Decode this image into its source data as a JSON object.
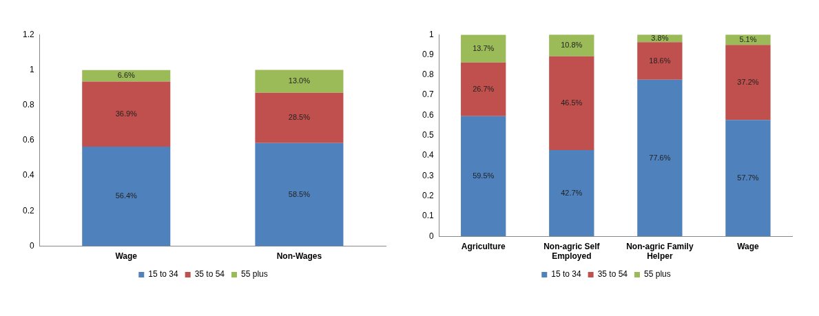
{
  "chart_data": [
    {
      "type": "bar",
      "stacked": true,
      "categories": [
        "Wage",
        "Non-Wages"
      ],
      "ylim": [
        0,
        1.2
      ],
      "yticks": [
        0,
        0.2,
        0.4,
        0.6,
        0.8,
        1,
        1.2
      ],
      "legend": "bottom",
      "grid": false,
      "series": [
        {
          "name": "15 to 34",
          "color": "#4f81bd",
          "values": [
            0.564,
            0.585
          ],
          "value_labels": [
            "56.4%",
            "58.5%"
          ]
        },
        {
          "name": "35 to 54",
          "color": "#c0504d",
          "values": [
            0.369,
            0.285
          ],
          "value_labels": [
            "36.9%",
            "28.5%"
          ]
        },
        {
          "name": "55 plus",
          "color": "#9bbb59",
          "values": [
            0.066,
            0.13
          ],
          "value_labels": [
            "6.6%",
            "13.0%"
          ]
        }
      ]
    },
    {
      "type": "bar",
      "stacked": true,
      "categories": [
        "Agriculture",
        "Non-agric Self Employed",
        "Non-agric Family Helper",
        "Wage"
      ],
      "ylim": [
        0,
        1
      ],
      "yticks": [
        0,
        0.1,
        0.2,
        0.3,
        0.4,
        0.5,
        0.6,
        0.7,
        0.8,
        0.9,
        1
      ],
      "legend": "bottom",
      "grid": false,
      "series": [
        {
          "name": "15 to 34",
          "color": "#4f81bd",
          "values": [
            0.595,
            0.427,
            0.776,
            0.577
          ],
          "value_labels": [
            "59.5%",
            "42.7%",
            "77.6%",
            "57.7%"
          ]
        },
        {
          "name": "35 to 54",
          "color": "#c0504d",
          "values": [
            0.267,
            0.465,
            0.186,
            0.372
          ],
          "value_labels": [
            "26.7%",
            "46.5%",
            "18.6%",
            "37.2%"
          ]
        },
        {
          "name": "55 plus",
          "color": "#9bbb59",
          "values": [
            0.137,
            0.108,
            0.038,
            0.051
          ],
          "value_labels": [
            "13.7%",
            "10.8%",
            "3.8%",
            "5.1%"
          ]
        }
      ]
    }
  ]
}
